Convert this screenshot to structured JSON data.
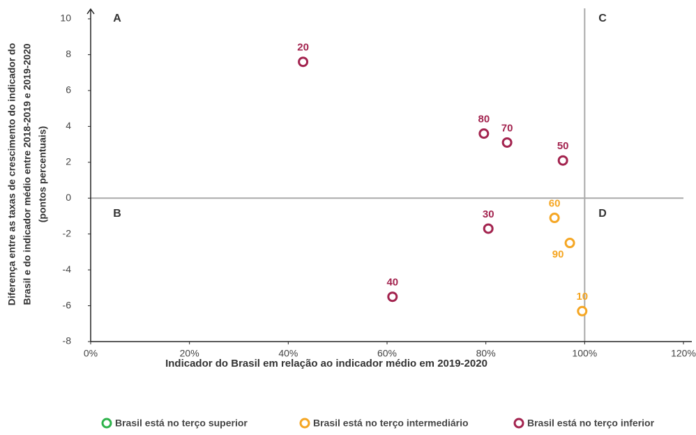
{
  "chart_data": {
    "type": "scatter",
    "x_label": "Indicador do Brasil em relação ao indicador médio em 2019-2020",
    "y_label": [
      "Diferença entre as taxas de crescimento do indicador do",
      "Brasil e do indicador médio entre 2018-2019 e 2019-2020",
      "(pontos percentuais)"
    ],
    "quadrant_labels": [
      "A",
      "B",
      "C",
      "D"
    ],
    "reference_lines": {
      "x": 100,
      "y": 0
    },
    "xlim": [
      0,
      120
    ],
    "xticks": [
      {
        "value": 0,
        "label": "0%"
      },
      {
        "value": 20,
        "label": "20%"
      },
      {
        "value": 40,
        "label": "40%"
      },
      {
        "value": 60,
        "label": "60%"
      },
      {
        "value": 80,
        "label": "80%"
      },
      {
        "value": 100,
        "label": "100%"
      },
      {
        "value": 120,
        "label": "120%"
      }
    ],
    "ylim": [
      -8,
      10
    ],
    "yticks": [
      -8,
      -6,
      -4,
      -2,
      0,
      2,
      4,
      6,
      8,
      10
    ],
    "series": [
      {
        "name": "Brasil está no terço superior",
        "color": "#2eb34b",
        "x": [],
        "values": [],
        "labels": []
      },
      {
        "name": "Brasil está no terço intermediário",
        "color": "#f5a623",
        "x": [
          93.9,
          97,
          99.5
        ],
        "values": [
          -1.1,
          -2.5,
          -6.3
        ],
        "labels": [
          "60",
          "90",
          "10"
        ]
      },
      {
        "name": "Brasil está no terço inferior",
        "color": "#a3244f",
        "x": [
          43,
          79.6,
          84.3,
          95.6,
          80.5,
          61.1
        ],
        "values": [
          7.6,
          3.6,
          3.1,
          2.1,
          -1.7,
          -5.5
        ],
        "labels": [
          "20",
          "80",
          "70",
          "50",
          "30",
          "40"
        ]
      }
    ]
  }
}
